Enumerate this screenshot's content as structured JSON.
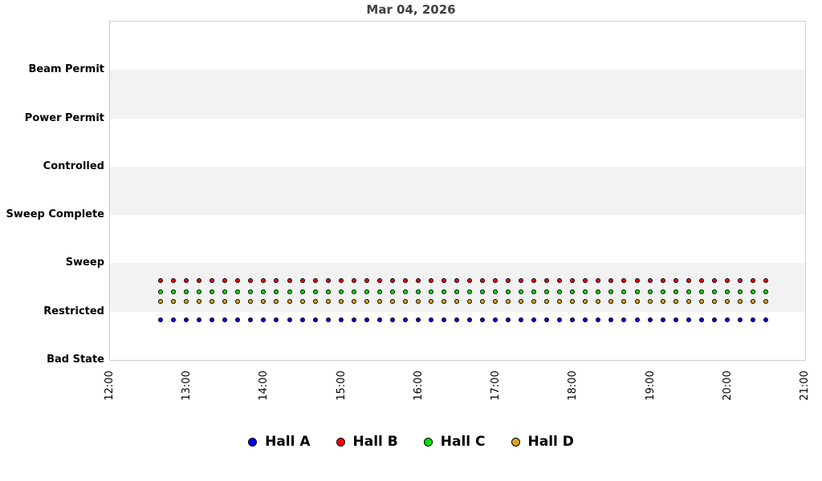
{
  "chart_data": {
    "type": "scatter",
    "title": "Mar 04, 2026",
    "y_categories": [
      "Beam Permit",
      "Power Permit",
      "Controlled",
      "Sweep Complete",
      "Sweep",
      "Restricted",
      "Bad State"
    ],
    "x_ticks": [
      "12:00",
      "13:00",
      "14:00",
      "15:00",
      "16:00",
      "17:00",
      "18:00",
      "19:00",
      "20:00",
      "21:00"
    ],
    "x_range": [
      "12:00",
      "21:00"
    ],
    "sample_interval_minutes": 10,
    "times": [
      "12:40",
      "12:50",
      "13:00",
      "13:10",
      "13:20",
      "13:30",
      "13:40",
      "13:50",
      "14:00",
      "14:10",
      "14:20",
      "14:30",
      "14:40",
      "14:50",
      "15:00",
      "15:10",
      "15:20",
      "15:30",
      "15:40",
      "15:50",
      "16:00",
      "16:10",
      "16:20",
      "16:30",
      "16:40",
      "16:50",
      "17:00",
      "17:10",
      "17:20",
      "17:30",
      "17:40",
      "17:50",
      "18:00",
      "18:10",
      "18:20",
      "18:30",
      "18:40",
      "18:50",
      "19:00",
      "19:10",
      "19:20",
      "19:30",
      "19:40",
      "19:50",
      "20:00",
      "20:10",
      "20:20",
      "20:30"
    ],
    "series": [
      {
        "name": "Hall A",
        "color": "#0000e0",
        "state": "Restricted",
        "y_units": 6.19
      },
      {
        "name": "Hall B",
        "color": "#ff0000",
        "state": "Restricted",
        "y_units": 5.38
      },
      {
        "name": "Hall C",
        "color": "#00e000",
        "state": "Restricted",
        "y_units": 5.6
      },
      {
        "name": "Hall D",
        "color": "#daa520",
        "state": "Restricted",
        "y_units": 5.8
      }
    ],
    "band_rows": [
      1,
      3,
      5
    ],
    "colors": {
      "band": "#f2f2f2",
      "plot_border": "#cccccc",
      "title": "#404040",
      "label": "#000000"
    },
    "legend_position": "bottom",
    "grid": "horizontal-bands"
  }
}
